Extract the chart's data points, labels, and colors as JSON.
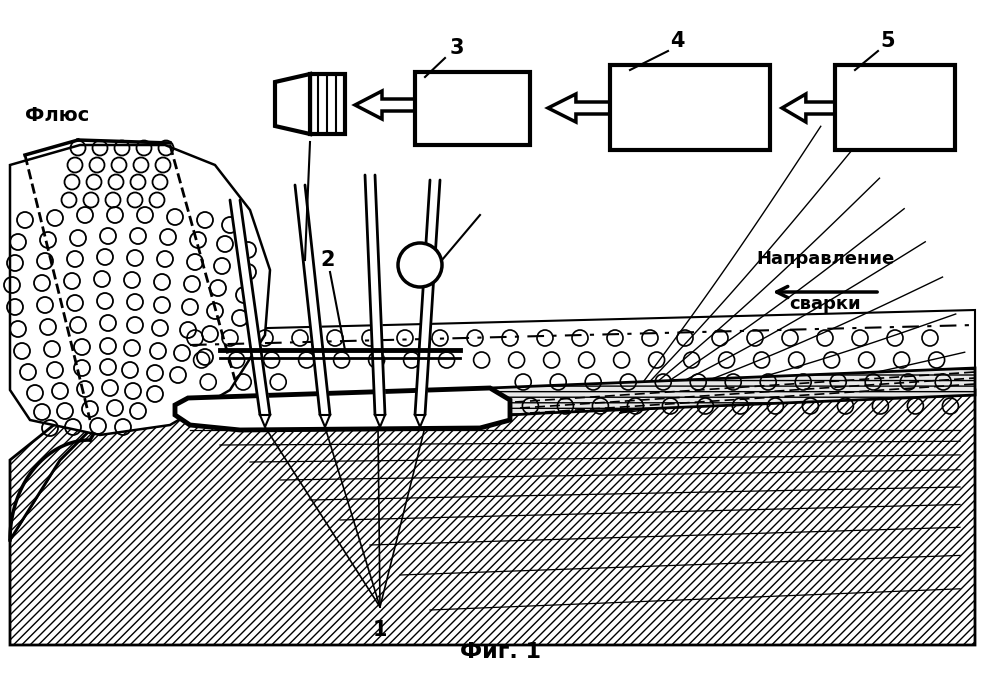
{
  "title": "Фиг. 1",
  "label_flux": "Флюс",
  "label_napravlenie": "Направление",
  "label_svarki": "сварки",
  "label_1": "1",
  "label_2": "2",
  "label_3": "3",
  "label_4": "4",
  "label_5": "5",
  "bg_color": "#ffffff",
  "line_color": "#000000"
}
